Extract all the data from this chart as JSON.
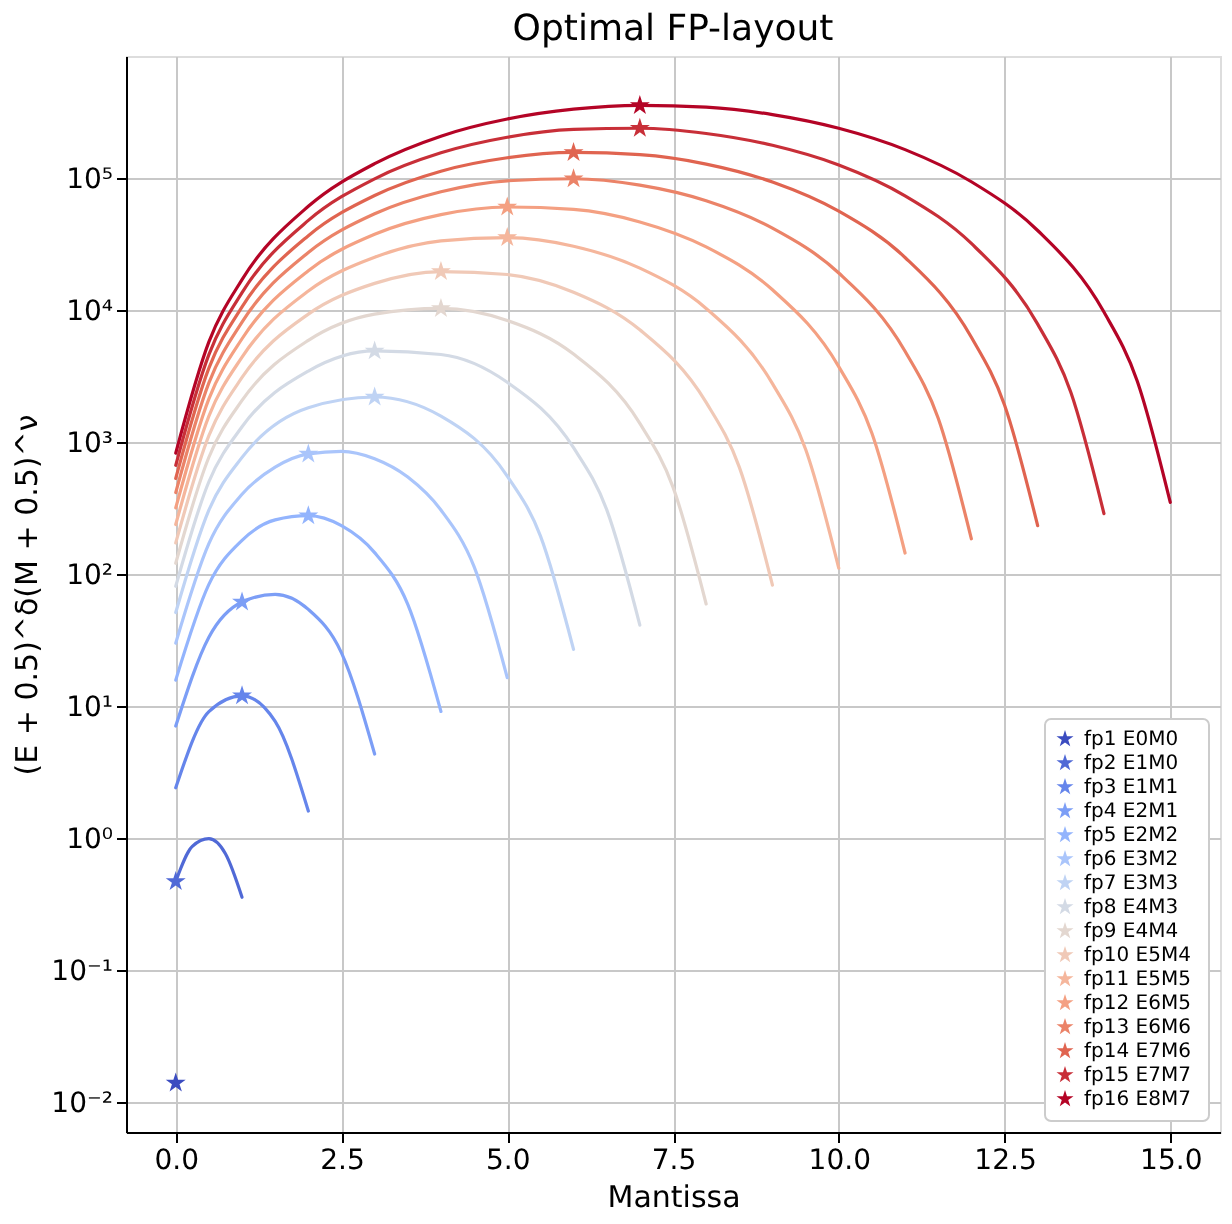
{
  "chart_data": {
    "type": "line",
    "title": "Optimal FP-layout",
    "xlabel": "Mantissa",
    "ylabel": "(E + 0.5)^δ(M + 0.5)^ν",
    "xlim": [
      -0.75,
      15.75
    ],
    "xticks": [
      {
        "value": 0,
        "label": "0.0"
      },
      {
        "value": 2.5,
        "label": "2.5"
      },
      {
        "value": 5,
        "label": "5.0"
      },
      {
        "value": 7.5,
        "label": "7.5"
      },
      {
        "value": 10,
        "label": "10.0"
      },
      {
        "value": 12.5,
        "label": "12.5"
      },
      {
        "value": 15,
        "label": "15.0"
      }
    ],
    "ylim": [
      0.006,
      850000
    ],
    "yticks": [
      {
        "value": 0.01,
        "label": "10⁻²"
      },
      {
        "value": 0.1,
        "label": "10⁻¹"
      },
      {
        "value": 1,
        "label": "10⁰"
      },
      {
        "value": 10,
        "label": "10¹"
      },
      {
        "value": 100,
        "label": "10²"
      },
      {
        "value": 1000,
        "label": "10³"
      },
      {
        "value": 10000,
        "label": "10⁴"
      },
      {
        "value": 100000,
        "label": "10⁵"
      }
    ],
    "log": "y",
    "grid": true,
    "legend": "bottom right",
    "series": [
      {
        "color": "#5069d6",
        "x": [
          0,
          0.25,
          0.5,
          0.75,
          1
        ],
        "values": [
          0.474,
          0.874,
          1,
          0.769,
          0.36
        ]
      },
      {
        "color": "#6585eb",
        "x": [
          0,
          0.5,
          1,
          1.5,
          2
        ],
        "values": [
          2.43,
          9.19,
          12.1,
          7.73,
          1.62
        ]
      },
      {
        "color": "#7c9ef6",
        "x": [
          0,
          0.5,
          1,
          1.5,
          2,
          2.5,
          3
        ],
        "values": [
          7.13,
          33.6,
          62.1,
          71.0,
          54.6,
          25.6,
          4.38
        ]
      },
      {
        "color": "#93b4fd",
        "x": [
          0,
          0.5,
          1,
          1.5,
          2,
          2.5,
          3,
          3.5,
          4
        ],
        "values": [
          15.9,
          84.5,
          182,
          260,
          280,
          235,
          147,
          59.7,
          9.2
        ]
      },
      {
        "color": "#aac5fb",
        "x": [
          0,
          0.5,
          1,
          1.5,
          2,
          2.5,
          3,
          3.5,
          4,
          4.5,
          5
        ],
        "values": [
          30.3,
          172,
          407,
          652,
          822,
          860,
          756,
          549,
          309,
          115,
          16.6
        ]
      },
      {
        "color": "#bfd3f4",
        "x": [
          0,
          0.5,
          1,
          2,
          3,
          4,
          5,
          5.5,
          6
        ],
        "values": [
          51.7,
          309,
          774,
          1840,
          2220,
          1590,
          559,
          197,
          27.2
        ]
      },
      {
        "color": "#d3dae5",
        "x": [
          0,
          0.5,
          1,
          2,
          3,
          4,
          5,
          6,
          6.5,
          7
        ],
        "values": [
          81.7,
          506,
          1320,
          3490,
          4960,
          4660,
          2870,
          916,
          311,
          41.5
        ]
      },
      {
        "color": "#e3d7d0",
        "x": [
          0,
          0.5,
          1,
          2,
          3,
          4,
          5,
          6,
          7,
          7.5,
          8
        ],
        "values": [
          122,
          776,
          2090,
          5960,
          9420,
          10400,
          8420,
          4690,
          1400,
          461,
          60.0
        ]
      },
      {
        "color": "#f0c9b7",
        "x": [
          0,
          0.5,
          1,
          2,
          3,
          4,
          5,
          6,
          7,
          8,
          8.5,
          9
        ],
        "values": [
          174,
          1130,
          3120,
          9420,
          16100,
          19800,
          18800,
          13800,
          7160,
          2020,
          653,
          83.4
        ]
      },
      {
        "color": "#f5b69c",
        "x": [
          0,
          0.5,
          1,
          2,
          3,
          4,
          5,
          6,
          7,
          8,
          9,
          9.5,
          10
        ],
        "values": [
          240,
          1590,
          4450,
          14100,
          25400,
          33800,
          35800,
          30800,
          21000,
          10400,
          2800,
          891,
          112
        ]
      },
      {
        "color": "#f4a082",
        "x": [
          0,
          0.5,
          1,
          2,
          3,
          4,
          5,
          6,
          7,
          8,
          9,
          10,
          10.5,
          11
        ],
        "values": [
          321,
          2150,
          6130,
          20100,
          37900,
          53400,
          61000,
          58500,
          47000,
          30400,
          14400,
          3770,
          1180,
          146
        ]
      },
      {
        "color": "#eb8368",
        "x": [
          0,
          0.5,
          1,
          2,
          3,
          4,
          5,
          6,
          7,
          8,
          9,
          10,
          11,
          11.5,
          12
        ],
        "values": [
          419,
          2840,
          8200,
          27600,
          54200,
          79600,
          96400,
          99900,
          89300,
          68000,
          42200,
          19300,
          4930,
          1530,
          187
        ]
      },
      {
        "color": "#e06450",
        "x": [
          0,
          0.5,
          1,
          2,
          3,
          4,
          5,
          6,
          7,
          8,
          9,
          10,
          11,
          12,
          12.5,
          13
        ],
        "values": [
          536,
          3670,
          10700,
          37000,
          74600,
          114000,
          144000,
          158000,
          152000,
          129000,
          94300,
          56700,
          25300,
          6300,
          1930,
          235
        ]
      },
      {
        "color": "#c82f38",
        "x": [
          0,
          0.5,
          1,
          2,
          3,
          4,
          5,
          6,
          7,
          8,
          9,
          10,
          11,
          12,
          13,
          13.5,
          14
        ],
        "values": [
          674,
          4650,
          13700,
          48300,
          99800,
          157000,
          206000,
          236000,
          241000,
          220000,
          179000,
          127000,
          74200,
          32300,
          7910,
          2410,
          290
        ]
      },
      {
        "color": "#b40426",
        "x": [
          0,
          0.5,
          1,
          2,
          3,
          4,
          5,
          6,
          7,
          8,
          9,
          10,
          11,
          12,
          13,
          14,
          14.5,
          15
        ],
        "values": [
          834,
          5800,
          17200,
          61800,
          130000,
          210000,
          283000,
          336000,
          359000,
          348000,
          306000,
          241000,
          166000,
          94800,
          40500,
          9760,
          2950,
          353
        ]
      },
      {
        "type": "scatter",
        "marker": "star",
        "name": "fp1  E0M0",
        "color": "#3b4cc0",
        "x": [
          0
        ],
        "values": [
          0.0141
        ]
      },
      {
        "type": "scatter",
        "marker": "star",
        "name": "fp2  E1M0",
        "color": "#5069d6",
        "x": [
          0
        ],
        "values": [
          0.474
        ]
      },
      {
        "type": "scatter",
        "marker": "star",
        "name": "fp3  E1M1",
        "color": "#6585eb",
        "x": [
          1
        ],
        "values": [
          12.1
        ]
      },
      {
        "type": "scatter",
        "marker": "star",
        "name": "fp4  E2M1",
        "color": "#7c9ef6",
        "x": [
          1
        ],
        "values": [
          62.1
        ]
      },
      {
        "type": "scatter",
        "marker": "star",
        "name": "fp5  E2M2",
        "color": "#93b4fd",
        "x": [
          2
        ],
        "values": [
          280
        ]
      },
      {
        "type": "scatter",
        "marker": "star",
        "name": "fp6  E3M2",
        "color": "#aac5fb",
        "x": [
          2
        ],
        "values": [
          822
        ]
      },
      {
        "type": "scatter",
        "marker": "star",
        "name": "fp7  E3M3",
        "color": "#bfd3f4",
        "x": [
          3
        ],
        "values": [
          2220
        ]
      },
      {
        "type": "scatter",
        "marker": "star",
        "name": "fp8  E4M3",
        "color": "#d3dae5",
        "x": [
          3
        ],
        "values": [
          4960
        ]
      },
      {
        "type": "scatter",
        "marker": "star",
        "name": "fp9  E4M4",
        "color": "#e3d7d0",
        "x": [
          4
        ],
        "values": [
          10400
        ]
      },
      {
        "type": "scatter",
        "marker": "star",
        "name": "fp10  E5M4",
        "color": "#f0c9b7",
        "x": [
          4
        ],
        "values": [
          19800
        ]
      },
      {
        "type": "scatter",
        "marker": "star",
        "name": "fp11  E5M5",
        "color": "#f5b69c",
        "x": [
          5
        ],
        "values": [
          35800
        ]
      },
      {
        "type": "scatter",
        "marker": "star",
        "name": "fp12  E6M5",
        "color": "#f4a082",
        "x": [
          5
        ],
        "values": [
          61000
        ]
      },
      {
        "type": "scatter",
        "marker": "star",
        "name": "fp13  E6M6",
        "color": "#eb8368",
        "x": [
          6
        ],
        "values": [
          99900
        ]
      },
      {
        "type": "scatter",
        "marker": "star",
        "name": "fp14  E7M6",
        "color": "#e06450",
        "x": [
          6
        ],
        "values": [
          158000
        ]
      },
      {
        "type": "scatter",
        "marker": "star",
        "name": "fp15  E7M7",
        "color": "#c82f38",
        "x": [
          7
        ],
        "values": [
          241000
        ]
      },
      {
        "type": "scatter",
        "marker": "star",
        "name": "fp16  E8M7",
        "color": "#b40426",
        "x": [
          7
        ],
        "values": [
          359000
        ]
      }
    ]
  }
}
